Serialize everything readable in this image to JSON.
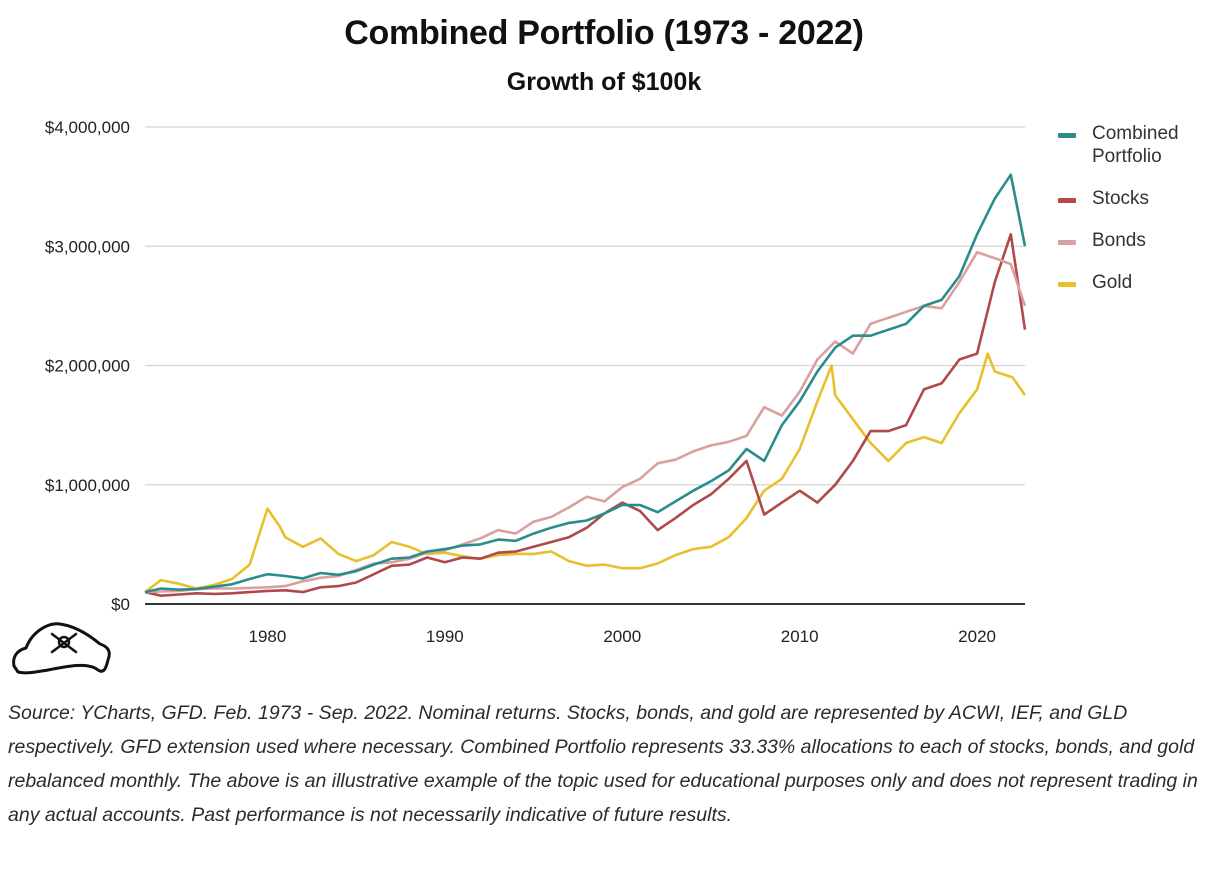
{
  "chart_data": {
    "type": "line",
    "title": "Combined Portfolio (1973 - 2022)",
    "subtitle": "Growth of $100k",
    "x_ticks": [
      "1980",
      "1990",
      "2000",
      "2010",
      "2020"
    ],
    "y_ticks": [
      "$0",
      "$1,000,000",
      "$2,000,000",
      "$3,000,000",
      "$4,000,000"
    ],
    "xlim": [
      1973.1,
      2022.7
    ],
    "ylim": [
      0,
      4000000
    ],
    "grid": "horizontal",
    "legend_position": "right",
    "series": [
      {
        "name": "Combined\nPortfolio",
        "color": "#2b8c8c",
        "x": [
          1973.1,
          1974,
          1975,
          1976,
          1977,
          1978,
          1979,
          1980,
          1981,
          1982,
          1983,
          1984,
          1985,
          1986,
          1987,
          1988,
          1989,
          1990,
          1991,
          1992,
          1993,
          1994,
          1995,
          1996,
          1997,
          1998,
          1999,
          2000,
          2001,
          2002,
          2003,
          2004,
          2005,
          2006,
          2007,
          2008,
          2009,
          2010,
          2011,
          2012,
          2013,
          2014,
          2015,
          2016,
          2017,
          2018,
          2019,
          2020,
          2021,
          2021.9,
          2022.7
        ],
        "y": [
          100000,
          130000,
          120000,
          125000,
          145000,
          165000,
          210000,
          250000,
          235000,
          215000,
          260000,
          245000,
          275000,
          330000,
          380000,
          390000,
          440000,
          460000,
          490000,
          500000,
          540000,
          530000,
          590000,
          640000,
          680000,
          700000,
          760000,
          830000,
          830000,
          770000,
          860000,
          950000,
          1030000,
          1120000,
          1300000,
          1200000,
          1500000,
          1700000,
          1950000,
          2150000,
          2250000,
          2250000,
          2300000,
          2350000,
          2500000,
          2550000,
          2750000,
          3100000,
          3400000,
          3600000,
          3000000
        ]
      },
      {
        "name": "Stocks",
        "color": "#b04a4a",
        "x": [
          1973.1,
          1974,
          1975,
          1976,
          1977,
          1978,
          1979,
          1980,
          1981,
          1982,
          1983,
          1984,
          1985,
          1986,
          1987,
          1988,
          1989,
          1990,
          1991,
          1992,
          1993,
          1994,
          1995,
          1996,
          1997,
          1998,
          1999,
          2000,
          2001,
          2002,
          2003,
          2004,
          2005,
          2006,
          2007,
          2008,
          2009,
          2010,
          2011,
          2012,
          2013,
          2014,
          2015,
          2016,
          2017,
          2018,
          2019,
          2020,
          2021,
          2021.9,
          2022.7
        ],
        "y": [
          100000,
          70000,
          80000,
          90000,
          85000,
          90000,
          100000,
          110000,
          115000,
          100000,
          140000,
          150000,
          180000,
          250000,
          320000,
          330000,
          390000,
          350000,
          390000,
          380000,
          430000,
          440000,
          480000,
          520000,
          560000,
          640000,
          760000,
          850000,
          780000,
          620000,
          720000,
          830000,
          920000,
          1050000,
          1200000,
          750000,
          850000,
          950000,
          850000,
          1000000,
          1200000,
          1450000,
          1450000,
          1500000,
          1800000,
          1850000,
          2050000,
          2100000,
          2700000,
          3100000,
          2300000
        ]
      },
      {
        "name": "Bonds",
        "color": "#d9a0a0",
        "x": [
          1973.1,
          1974,
          1975,
          1976,
          1977,
          1978,
          1979,
          1980,
          1981,
          1982,
          1983,
          1984,
          1985,
          1986,
          1987,
          1988,
          1989,
          1990,
          1991,
          1992,
          1993,
          1994,
          1995,
          1996,
          1997,
          1998,
          1999,
          2000,
          2001,
          2002,
          2003,
          2004,
          2005,
          2006,
          2007,
          2008,
          2009,
          2010,
          2011,
          2012,
          2013,
          2014,
          2015,
          2016,
          2017,
          2018,
          2019,
          2020,
          2021,
          2021.9,
          2022.7
        ],
        "y": [
          100000,
          105000,
          110000,
          125000,
          130000,
          130000,
          135000,
          140000,
          150000,
          190000,
          220000,
          235000,
          285000,
          340000,
          350000,
          380000,
          430000,
          450000,
          500000,
          550000,
          620000,
          590000,
          690000,
          730000,
          810000,
          900000,
          860000,
          980000,
          1050000,
          1180000,
          1210000,
          1280000,
          1330000,
          1360000,
          1410000,
          1650000,
          1580000,
          1780000,
          2050000,
          2200000,
          2100000,
          2350000,
          2400000,
          2450000,
          2500000,
          2480000,
          2700000,
          2950000,
          2900000,
          2850000,
          2500000
        ]
      },
      {
        "name": "Gold",
        "color": "#e8c02e",
        "x": [
          1973.1,
          1974,
          1975,
          1976,
          1977,
          1978,
          1979,
          1980,
          1980.7,
          1981,
          1982,
          1983,
          1984,
          1985,
          1986,
          1987,
          1988,
          1989,
          1990,
          1991,
          1992,
          1993,
          1994,
          1995,
          1996,
          1997,
          1998,
          1999,
          2000,
          2001,
          2002,
          2003,
          2004,
          2005,
          2006,
          2007,
          2008,
          2009,
          2010,
          2011,
          2011.8,
          2012,
          2013,
          2014,
          2015,
          2016,
          2017,
          2018,
          2019,
          2020,
          2020.6,
          2021,
          2022,
          2022.7
        ],
        "y": [
          100000,
          200000,
          170000,
          130000,
          160000,
          210000,
          330000,
          800000,
          650000,
          560000,
          480000,
          550000,
          420000,
          360000,
          410000,
          520000,
          480000,
          420000,
          430000,
          400000,
          380000,
          410000,
          420000,
          420000,
          440000,
          360000,
          320000,
          330000,
          300000,
          300000,
          340000,
          410000,
          460000,
          480000,
          560000,
          720000,
          950000,
          1050000,
          1300000,
          1700000,
          2000000,
          1750000,
          1550000,
          1350000,
          1200000,
          1350000,
          1400000,
          1350000,
          1600000,
          1800000,
          2100000,
          1950000,
          1900000,
          1750000
        ]
      }
    ]
  },
  "source_text": "Source: YCharts, GFD. Feb. 1973 - Sep. 2022. Nominal returns. Stocks, bonds, and gold are represented by ACWI, IEF, and GLD respectively. GFD extension used where necessary. Combined Portfolio represents 33.33% allocations to each of stocks, bonds, and gold rebalanced monthly. The above is an illustrative example of the topic used for educational purposes only and does not represent trading in any actual accounts. Past performance is not necessarily indicative of future results."
}
